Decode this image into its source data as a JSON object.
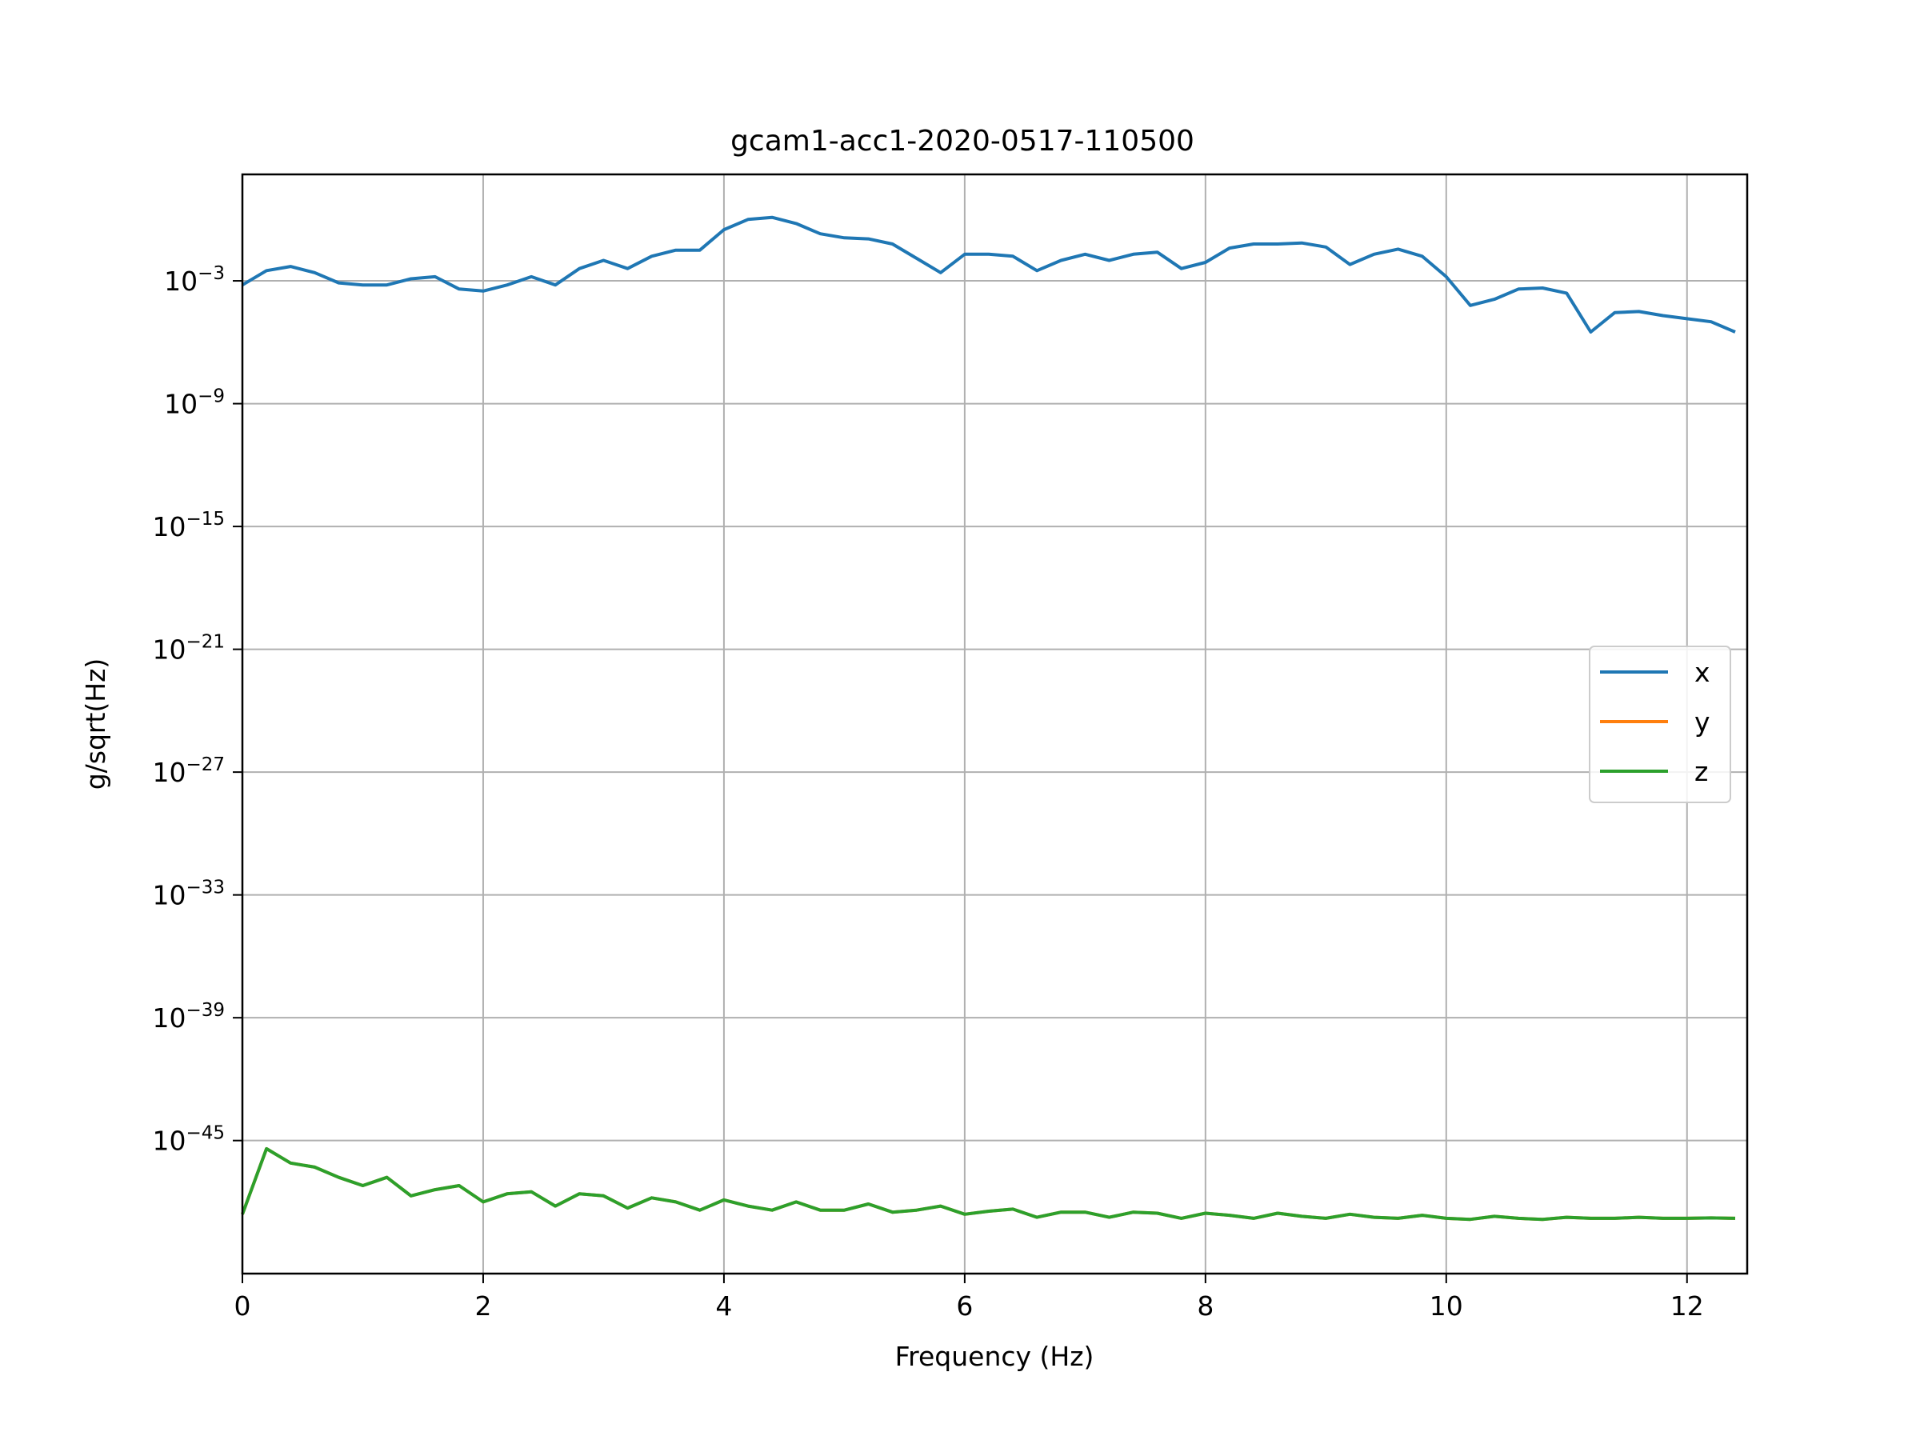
{
  "chart_data": {
    "type": "line",
    "title": "gcam1-acc1-2020-0517-110500",
    "xlabel": "Frequency (Hz)",
    "ylabel": "g/sqrt(Hz)",
    "x_scale": "linear",
    "y_scale": "log",
    "xlim": [
      0,
      12.5
    ],
    "ylim_log10": [
      -51.5,
      2.2
    ],
    "x_ticks": [
      0,
      2,
      4,
      6,
      8,
      10,
      12
    ],
    "y_ticks_exponent": [
      -3,
      -9,
      -15,
      -21,
      -27,
      -33,
      -39,
      -45
    ],
    "y_tick_base": "10",
    "grid": true,
    "legend_position": "center-right",
    "x": [
      0,
      0.2,
      0.4,
      0.6,
      0.8,
      1.0,
      1.2,
      1.4,
      1.6,
      1.8,
      2.0,
      2.2,
      2.4,
      2.6,
      2.8,
      3.0,
      3.2,
      3.4,
      3.6,
      3.8,
      4.0,
      4.2,
      4.4,
      4.6,
      4.8,
      5.0,
      5.2,
      5.4,
      5.6,
      5.8,
      6.0,
      6.2,
      6.4,
      6.6,
      6.8,
      7.0,
      7.2,
      7.4,
      7.6,
      7.8,
      8.0,
      8.2,
      8.4,
      8.6,
      8.8,
      9.0,
      9.2,
      9.4,
      9.6,
      9.8,
      10.0,
      10.2,
      10.4,
      10.6,
      10.8,
      11.0,
      11.2,
      11.4,
      11.6,
      11.8,
      12.0,
      12.2,
      12.4
    ],
    "series": [
      {
        "name": "x",
        "color": "#1f77b4",
        "log10_values": [
          -3.2,
          -2.5,
          -2.3,
          -2.6,
          -3.1,
          -3.2,
          -3.2,
          -2.9,
          -2.8,
          -3.4,
          -3.5,
          -3.2,
          -2.8,
          -3.2,
          -2.4,
          -2.0,
          -2.4,
          -1.8,
          -1.5,
          -1.5,
          -0.5,
          0.0,
          0.1,
          -0.2,
          -0.7,
          -0.9,
          -0.95,
          -1.2,
          -1.9,
          -2.6,
          -1.7,
          -1.7,
          -1.8,
          -2.5,
          -2.0,
          -1.7,
          -2.0,
          -1.7,
          -1.6,
          -2.4,
          -2.1,
          -1.4,
          -1.2,
          -1.2,
          -1.15,
          -1.35,
          -2.2,
          -1.7,
          -1.45,
          -1.8,
          -2.8,
          -4.2,
          -3.9,
          -3.4,
          -3.35,
          -3.6,
          -5.5,
          -4.55,
          -4.5,
          -4.7,
          -4.85,
          -5.0,
          -5.5
        ]
      },
      {
        "name": "y",
        "color": "#ff7f0e",
        "log10_values": [
          -48.6,
          -45.4,
          -46.1,
          -46.3,
          -46.8,
          -47.2,
          -46.8,
          -47.7,
          -47.4,
          -47.2,
          -48.0,
          -47.6,
          -47.5,
          -48.2,
          -47.6,
          -47.7,
          -48.3,
          -47.8,
          -48.0,
          -48.4,
          -47.9,
          -48.2,
          -48.4,
          -48.0,
          -48.4,
          -48.4,
          -48.1,
          -48.5,
          -48.4,
          -48.2,
          -48.6,
          -48.45,
          -48.35,
          -48.75,
          -48.5,
          -48.5,
          -48.75,
          -48.5,
          -48.55,
          -48.8,
          -48.55,
          -48.65,
          -48.8,
          -48.55,
          -48.7,
          -48.8,
          -48.6,
          -48.75,
          -48.8,
          -48.65,
          -48.8,
          -48.85,
          -48.7,
          -48.8,
          -48.85,
          -48.75,
          -48.8,
          -48.8,
          -48.75,
          -48.8,
          -48.8,
          -48.78,
          -48.8
        ]
      },
      {
        "name": "z",
        "color": "#2ca02c",
        "log10_values": [
          -48.6,
          -45.4,
          -46.1,
          -46.3,
          -46.8,
          -47.2,
          -46.8,
          -47.7,
          -47.4,
          -47.2,
          -48.0,
          -47.6,
          -47.5,
          -48.2,
          -47.6,
          -47.7,
          -48.3,
          -47.8,
          -48.0,
          -48.4,
          -47.9,
          -48.2,
          -48.4,
          -48.0,
          -48.4,
          -48.4,
          -48.1,
          -48.5,
          -48.4,
          -48.2,
          -48.6,
          -48.45,
          -48.35,
          -48.75,
          -48.5,
          -48.5,
          -48.75,
          -48.5,
          -48.55,
          -48.8,
          -48.55,
          -48.65,
          -48.8,
          -48.55,
          -48.7,
          -48.8,
          -48.6,
          -48.75,
          -48.8,
          -48.65,
          -48.8,
          -48.85,
          -48.7,
          -48.8,
          -48.85,
          -48.75,
          -48.8,
          -48.8,
          -48.75,
          -48.8,
          -48.8,
          -48.78,
          -48.8
        ]
      }
    ]
  }
}
